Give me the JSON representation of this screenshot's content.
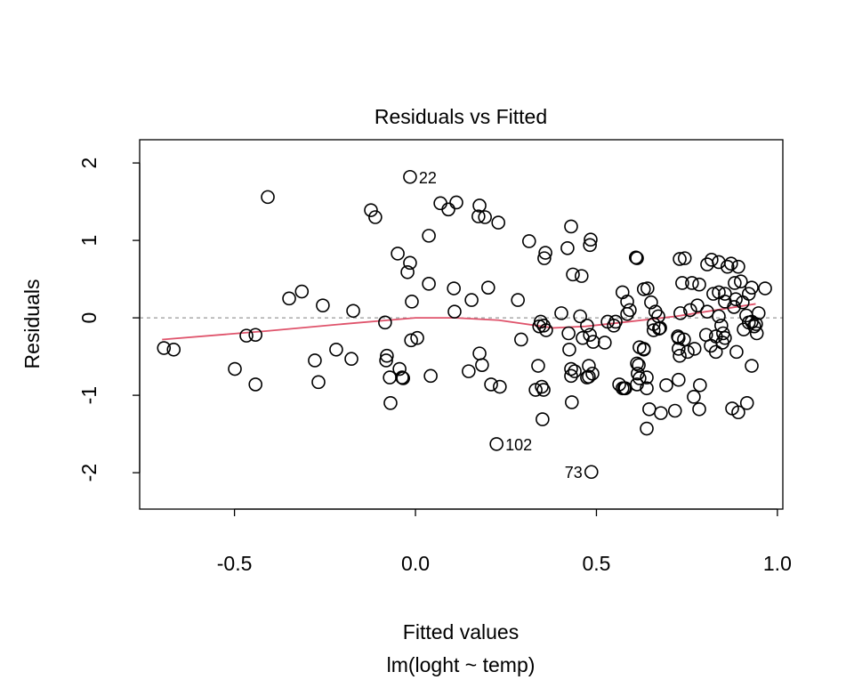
{
  "chart_data": {
    "type": "scatter",
    "title": "Residuals vs Fitted",
    "xlabel": "Fitted values",
    "subtitle": "lm(loght ~ temp)",
    "ylabel": "Residuals",
    "xlim": [
      -0.762,
      1.015
    ],
    "ylim": [
      -2.47,
      2.3
    ],
    "xticks": [
      {
        "v": -0.5,
        "label": "-0.5"
      },
      {
        "v": 0.0,
        "label": "0.0"
      },
      {
        "v": 0.5,
        "label": "0.5"
      },
      {
        "v": 1.0,
        "label": "1.0"
      }
    ],
    "yticks": [
      {
        "v": -2,
        "label": "-2"
      },
      {
        "v": -1,
        "label": "-1"
      },
      {
        "v": 0,
        "label": "0"
      },
      {
        "v": 1,
        "label": "1"
      },
      {
        "v": 2,
        "label": "2"
      }
    ],
    "reference_line": {
      "y": 0,
      "color": "#999999",
      "style": "dashed"
    },
    "smoother": {
      "color": "#DF536B",
      "points": [
        [
          -0.7,
          -0.28
        ],
        [
          -0.41,
          -0.17
        ],
        [
          -0.2,
          -0.08
        ],
        [
          0.0,
          0.0
        ],
        [
          0.11,
          0.0
        ],
        [
          0.23,
          -0.03
        ],
        [
          0.38,
          -0.13
        ],
        [
          0.47,
          -0.11
        ],
        [
          0.57,
          -0.06
        ],
        [
          0.72,
          0.02
        ],
        [
          0.94,
          0.18
        ]
      ]
    },
    "labeled_points": [
      {
        "label": "22",
        "x": -0.015,
        "y": 1.82
      },
      {
        "label": "102",
        "x": 0.224,
        "y": -1.63
      },
      {
        "label": "73",
        "x": 0.486,
        "y": -1.99
      }
    ],
    "points": [
      [
        -0.695,
        -0.39
      ],
      [
        -0.668,
        -0.41
      ],
      [
        -0.408,
        1.56
      ],
      [
        -0.499,
        -0.66
      ],
      [
        -0.467,
        -0.23
      ],
      [
        -0.442,
        -0.22
      ],
      [
        -0.442,
        -0.86
      ],
      [
        -0.349,
        0.25
      ],
      [
        -0.314,
        0.34
      ],
      [
        -0.278,
        -0.55
      ],
      [
        -0.268,
        -0.83
      ],
      [
        -0.256,
        0.16
      ],
      [
        -0.219,
        -0.41
      ],
      [
        -0.172,
        0.09
      ],
      [
        -0.177,
        -0.53
      ],
      [
        -0.123,
        1.39
      ],
      [
        -0.111,
        1.3
      ],
      [
        -0.084,
        -0.06
      ],
      [
        -0.081,
        -0.55
      ],
      [
        -0.079,
        -0.49
      ],
      [
        -0.071,
        -0.77
      ],
      [
        -0.069,
        -1.1
      ],
      [
        -0.049,
        0.83
      ],
      [
        -0.044,
        -0.66
      ],
      [
        -0.037,
        -0.77
      ],
      [
        -0.022,
        0.59
      ],
      [
        -0.015,
        0.71
      ],
      [
        -0.012,
        -0.29
      ],
      [
        -0.01,
        0.21
      ],
      [
        0.005,
        -0.26
      ],
      [
        -0.034,
        -0.78
      ],
      [
        -0.015,
        1.82
      ],
      [
        0.037,
        1.06
      ],
      [
        0.069,
        1.48
      ],
      [
        0.091,
        1.4
      ],
      [
        0.113,
        1.49
      ],
      [
        0.037,
        0.44
      ],
      [
        0.106,
        0.38
      ],
      [
        0.108,
        0.08
      ],
      [
        0.155,
        0.23
      ],
      [
        0.147,
        -0.69
      ],
      [
        0.042,
        -0.75
      ],
      [
        0.177,
        -0.46
      ],
      [
        0.184,
        -0.61
      ],
      [
        0.174,
        1.31
      ],
      [
        0.192,
        1.3
      ],
      [
        0.229,
        1.23
      ],
      [
        0.201,
        0.39
      ],
      [
        0.209,
        -0.86
      ],
      [
        0.177,
        1.45
      ],
      [
        0.233,
        -0.89
      ],
      [
        0.224,
        -1.63
      ],
      [
        0.283,
        0.23
      ],
      [
        0.292,
        -0.28
      ],
      [
        0.314,
        0.99
      ],
      [
        0.332,
        -0.93
      ],
      [
        0.339,
        -0.62
      ],
      [
        0.351,
        -1.31
      ],
      [
        0.349,
        -0.89
      ],
      [
        0.354,
        -0.93
      ],
      [
        0.356,
        0.77
      ],
      [
        0.359,
        0.84
      ],
      [
        0.346,
        -0.05
      ],
      [
        0.354,
        -0.1
      ],
      [
        0.342,
        -0.11
      ],
      [
        0.361,
        -0.16
      ],
      [
        0.403,
        0.06
      ],
      [
        0.42,
        0.9
      ],
      [
        0.43,
        1.18
      ],
      [
        0.423,
        -0.2
      ],
      [
        0.425,
        -0.41
      ],
      [
        0.43,
        -0.66
      ],
      [
        0.43,
        -0.75
      ],
      [
        0.44,
        -0.69
      ],
      [
        0.432,
        -1.09
      ],
      [
        0.435,
        0.56
      ],
      [
        0.455,
        0.02
      ],
      [
        0.462,
        -0.26
      ],
      [
        0.459,
        0.54
      ],
      [
        0.482,
        0.94
      ],
      [
        0.484,
        1.01
      ],
      [
        0.474,
        -0.1
      ],
      [
        0.482,
        -0.22
      ],
      [
        0.491,
        -0.31
      ],
      [
        0.486,
        -1.99
      ],
      [
        0.479,
        -0.62
      ],
      [
        0.479,
        -0.76
      ],
      [
        0.474,
        -0.77
      ],
      [
        0.489,
        -0.72
      ],
      [
        0.523,
        -0.32
      ],
      [
        0.531,
        -0.05
      ],
      [
        0.548,
        -0.1
      ],
      [
        0.553,
        -0.05
      ],
      [
        0.563,
        -0.86
      ],
      [
        0.572,
        -0.91
      ],
      [
        0.609,
        0.78
      ],
      [
        0.612,
        -0.59
      ],
      [
        0.614,
        -0.72
      ],
      [
        0.612,
        -0.86
      ],
      [
        0.619,
        -0.78
      ],
      [
        0.572,
        0.33
      ],
      [
        0.585,
        0.21
      ],
      [
        0.592,
        0.1
      ],
      [
        0.631,
        0.37
      ],
      [
        0.641,
        0.38
      ],
      [
        0.651,
        0.2
      ],
      [
        0.663,
        0.08
      ],
      [
        0.658,
        -0.08
      ],
      [
        0.676,
        -0.13
      ],
      [
        0.585,
        0.05
      ],
      [
        0.671,
        0.02
      ],
      [
        0.658,
        -0.16
      ],
      [
        0.673,
        -0.14
      ],
      [
        0.732,
        0.06
      ],
      [
        0.759,
        0.1
      ],
      [
        0.779,
        0.16
      ],
      [
        0.838,
        0.02
      ],
      [
        0.845,
        -0.1
      ],
      [
        0.85,
        -0.2
      ],
      [
        0.848,
        -0.32
      ],
      [
        0.855,
        -0.26
      ],
      [
        0.83,
        -0.24
      ],
      [
        0.914,
        0.03
      ],
      [
        0.929,
        -0.05
      ],
      [
        0.948,
        0.06
      ],
      [
        0.941,
        -0.08
      ],
      [
        0.921,
        -0.06
      ],
      [
        0.907,
        -0.15
      ],
      [
        0.725,
        -0.24
      ],
      [
        0.727,
        -0.4
      ],
      [
        0.727,
        -0.26
      ],
      [
        0.742,
        -0.28
      ],
      [
        0.73,
        -0.49
      ],
      [
        0.631,
        -0.4
      ],
      [
        0.619,
        -0.38
      ],
      [
        0.631,
        -0.41
      ],
      [
        0.617,
        -0.61
      ],
      [
        0.639,
        -0.77
      ],
      [
        0.639,
        -0.91
      ],
      [
        0.58,
        -0.91
      ],
      [
        0.577,
        -0.91
      ],
      [
        0.646,
        -1.18
      ],
      [
        0.678,
        -1.23
      ],
      [
        0.639,
        -1.43
      ],
      [
        0.693,
        -0.87
      ],
      [
        0.727,
        -0.8
      ],
      [
        0.752,
        -0.44
      ],
      [
        0.771,
        -0.4
      ],
      [
        0.803,
        -0.22
      ],
      [
        0.816,
        -0.36
      ],
      [
        0.83,
        -0.44
      ],
      [
        0.887,
        -0.44
      ],
      [
        0.929,
        -0.62
      ],
      [
        0.786,
        -0.87
      ],
      [
        0.769,
        -1.02
      ],
      [
        0.875,
        -1.17
      ],
      [
        0.892,
        -1.22
      ],
      [
        0.916,
        -1.1
      ],
      [
        0.717,
        -1.2
      ],
      [
        0.784,
        -1.18
      ],
      [
        0.936,
        -0.11
      ],
      [
        0.943,
        -0.2
      ],
      [
        0.612,
        0.77
      ],
      [
        0.73,
        0.76
      ],
      [
        0.744,
        0.77
      ],
      [
        0.737,
        0.45
      ],
      [
        0.764,
        0.45
      ],
      [
        0.784,
        0.43
      ],
      [
        0.806,
        0.69
      ],
      [
        0.818,
        0.75
      ],
      [
        0.838,
        0.72
      ],
      [
        0.862,
        0.66
      ],
      [
        0.872,
        0.7
      ],
      [
        0.892,
        0.66
      ],
      [
        0.882,
        0.45
      ],
      [
        0.899,
        0.47
      ],
      [
        0.823,
        0.31
      ],
      [
        0.838,
        0.33
      ],
      [
        0.855,
        0.31
      ],
      [
        0.921,
        0.31
      ],
      [
        0.929,
        0.39
      ],
      [
        0.966,
        0.38
      ],
      [
        0.904,
        0.2
      ],
      [
        0.88,
        0.14
      ],
      [
        0.885,
        0.24
      ],
      [
        0.806,
        0.08
      ],
      [
        0.855,
        0.21
      ]
    ]
  }
}
